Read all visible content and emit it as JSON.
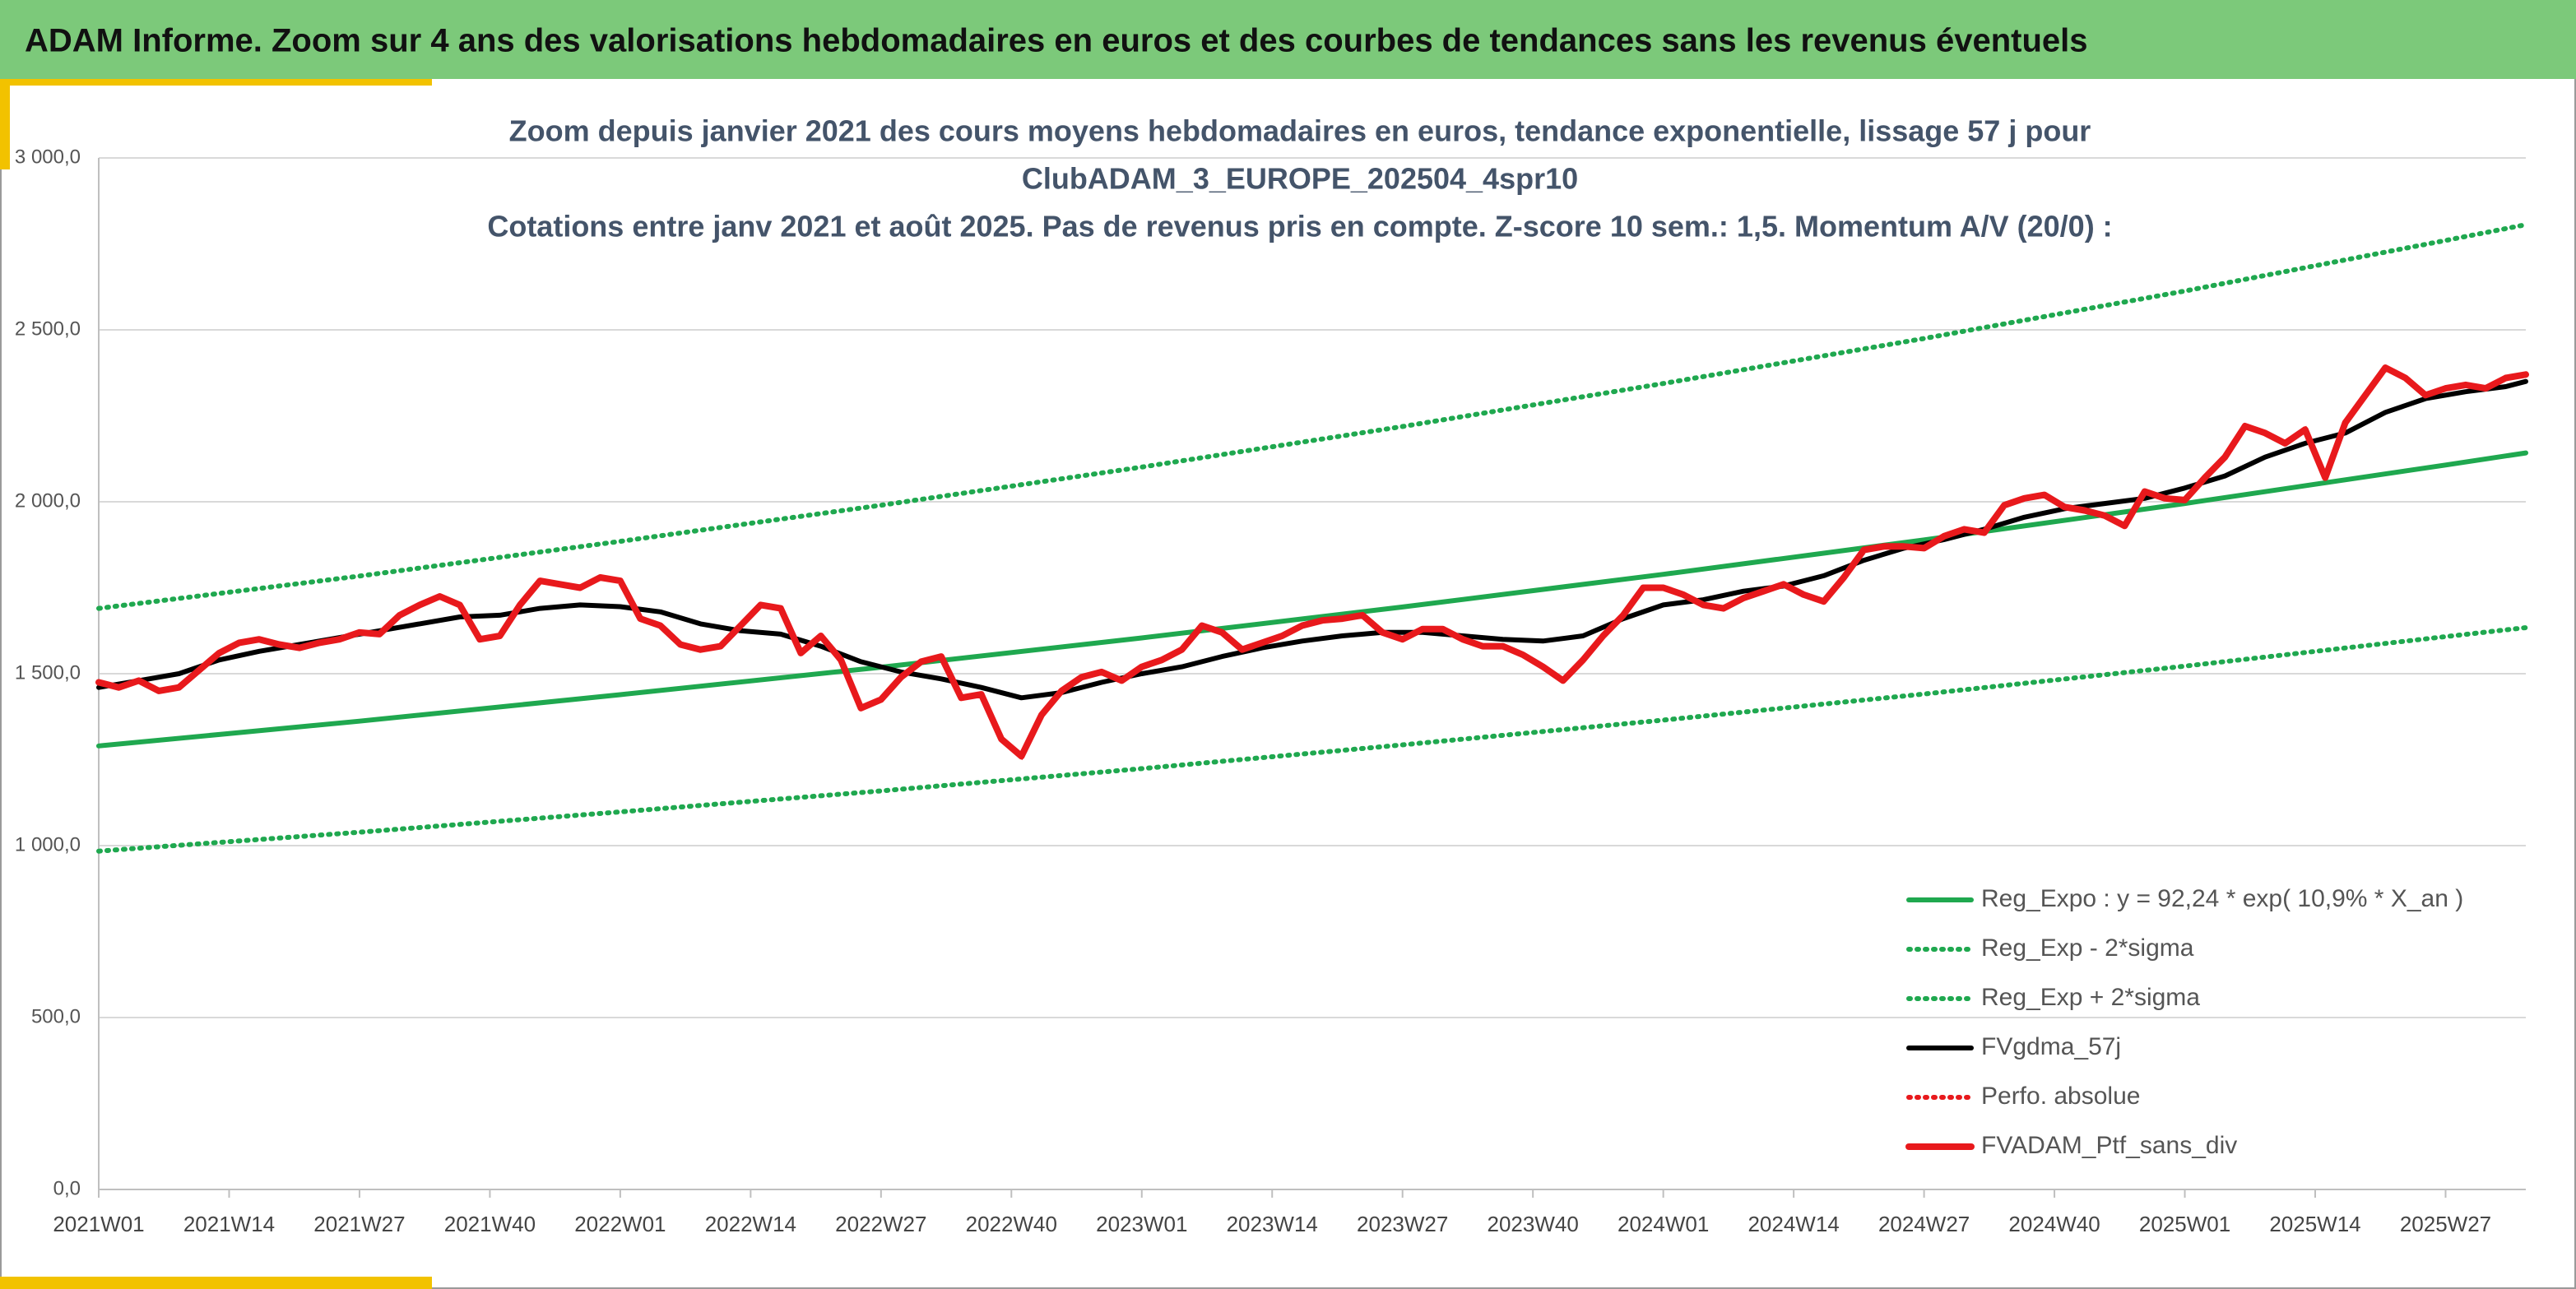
{
  "header": {
    "title": "ADAM Informe. Zoom sur 4 ans des valorisations hebdomadaires en euros et des courbes de tendances sans les revenus éventuels"
  },
  "chart_data": {
    "type": "line",
    "title": [
      "Zoom depuis janvier 2021 des cours moyens hebdomadaires en euros, tendance exponentielle, lissage 57 j pour",
      "ClubADAM_3_EUROPE_202504_4spr10",
      "Cotations entre janv 2021 et août 2025. Pas de revenus pris en compte. Z-score 10 sem.: 1,5. Momentum A/V (20/0) :"
    ],
    "xlim": [
      "2021W01",
      "2025W35"
    ],
    "xticks": [
      "2021W01",
      "2021W14",
      "2021W27",
      "2021W40",
      "2022W01",
      "2022W14",
      "2022W27",
      "2022W40",
      "2023W01",
      "2023W14",
      "2023W27",
      "2023W40",
      "2024W01",
      "2024W14",
      "2024W27",
      "2024W40",
      "2025W01",
      "2025W14",
      "2025W27"
    ],
    "ylim": [
      0,
      3000
    ],
    "yticks": [
      {
        "value": 0,
        "label": "0,0"
      },
      {
        "value": 500,
        "label": "500,0"
      },
      {
        "value": 1000,
        "label": "1 000,0"
      },
      {
        "value": 1500,
        "label": "1 500,0"
      },
      {
        "value": 2000,
        "label": "2 000,0"
      },
      {
        "value": 2500,
        "label": "2 500,0"
      },
      {
        "value": 3000,
        "label": "3 000,0"
      }
    ],
    "grid": true,
    "legend": "bottom-right",
    "series": [
      {
        "name": "Reg_Expo : y = 92,24 * exp( 10,9% *  X_an )",
        "color": "#1fa84f",
        "style": "solid",
        "x": [
          "2021W01",
          "2021W27",
          "2022W01",
          "2022W27",
          "2023W01",
          "2023W27",
          "2024W01",
          "2024W27",
          "2025W01",
          "2025W27",
          "2025W35"
        ],
        "values": [
          1290,
          1362,
          1439,
          1519,
          1604,
          1694,
          1789,
          1889,
          1995,
          2107,
          2142
        ]
      },
      {
        "name": "Reg_Exp - 2*sigma",
        "color": "#1fa84f",
        "style": "dotted",
        "x": [
          "2021W01",
          "2021W27",
          "2022W01",
          "2022W27",
          "2023W01",
          "2023W27",
          "2024W01",
          "2024W27",
          "2025W01",
          "2025W27",
          "2025W35"
        ],
        "values": [
          984,
          1039,
          1098,
          1159,
          1224,
          1293,
          1365,
          1441,
          1522,
          1608,
          1634
        ]
      },
      {
        "name": "Reg_Exp + 2*sigma",
        "color": "#1fa84f",
        "style": "dotted",
        "x": [
          "2021W01",
          "2021W27",
          "2022W01",
          "2022W27",
          "2023W01",
          "2023W27",
          "2024W01",
          "2024W27",
          "2025W01",
          "2025W27",
          "2025W35"
        ],
        "values": [
          1690,
          1784,
          1885,
          1990,
          2101,
          2219,
          2344,
          2475,
          2613,
          2760,
          2806
        ]
      },
      {
        "name": "FVgdma_57j",
        "color": "#000000",
        "style": "solid",
        "x": [
          "2021W01",
          "2021W05",
          "2021W09",
          "2021W13",
          "2021W17",
          "2021W21",
          "2021W25",
          "2021W29",
          "2021W33",
          "2021W37",
          "2021W41",
          "2021W45",
          "2021W49",
          "2022W01",
          "2022W05",
          "2022W09",
          "2022W13",
          "2022W17",
          "2022W21",
          "2022W25",
          "2022W29",
          "2022W33",
          "2022W37",
          "2022W41",
          "2022W45",
          "2022W49",
          "2023W01",
          "2023W05",
          "2023W09",
          "2023W13",
          "2023W17",
          "2023W21",
          "2023W25",
          "2023W29",
          "2023W33",
          "2023W37",
          "2023W41",
          "2023W45",
          "2023W49",
          "2024W01",
          "2024W05",
          "2024W09",
          "2024W13",
          "2024W17",
          "2024W21",
          "2024W25",
          "2024W29",
          "2024W33",
          "2024W37",
          "2024W41",
          "2024W45",
          "2024W49",
          "2025W01",
          "2025W05",
          "2025W09",
          "2025W13",
          "2025W17",
          "2025W21",
          "2025W25",
          "2025W29",
          "2025W33",
          "2025W35"
        ],
        "values": [
          1460,
          1480,
          1500,
          1540,
          1565,
          1585,
          1605,
          1625,
          1645,
          1665,
          1670,
          1690,
          1700,
          1695,
          1680,
          1645,
          1625,
          1615,
          1580,
          1535,
          1505,
          1485,
          1460,
          1430,
          1445,
          1475,
          1500,
          1520,
          1550,
          1575,
          1595,
          1610,
          1620,
          1620,
          1610,
          1600,
          1595,
          1610,
          1660,
          1700,
          1715,
          1740,
          1755,
          1785,
          1830,
          1865,
          1890,
          1920,
          1955,
          1980,
          1995,
          2010,
          2040,
          2075,
          2130,
          2170,
          2200,
          2260,
          2300,
          2320,
          2335,
          2350
        ]
      },
      {
        "name": "Perfo. absolue",
        "color": "#e8191c",
        "style": "dotted",
        "x": [
          "2021W01",
          "2021W03",
          "2021W05",
          "2021W07",
          "2021W09",
          "2021W11",
          "2021W13",
          "2021W15",
          "2021W17",
          "2021W19",
          "2021W21",
          "2021W23",
          "2021W25",
          "2021W27",
          "2021W29",
          "2021W31",
          "2021W33",
          "2021W35",
          "2021W37",
          "2021W39",
          "2021W41",
          "2021W43",
          "2021W45",
          "2021W47",
          "2021W49",
          "2021W51",
          "2022W01",
          "2022W03",
          "2022W05",
          "2022W07",
          "2022W09",
          "2022W11",
          "2022W13",
          "2022W15",
          "2022W17",
          "2022W19",
          "2022W21",
          "2022W23",
          "2022W25",
          "2022W27",
          "2022W29",
          "2022W31",
          "2022W33",
          "2022W35",
          "2022W37",
          "2022W39",
          "2022W41",
          "2022W43",
          "2022W45",
          "2022W47",
          "2022W49",
          "2022W51",
          "2023W01",
          "2023W03",
          "2023W05",
          "2023W07",
          "2023W09",
          "2023W11",
          "2023W13",
          "2023W15",
          "2023W17",
          "2023W19",
          "2023W21",
          "2023W23",
          "2023W25",
          "2023W27",
          "2023W29",
          "2023W31",
          "2023W33",
          "2023W35",
          "2023W37",
          "2023W39",
          "2023W41",
          "2023W43",
          "2023W45",
          "2023W47",
          "2023W49",
          "2023W51",
          "2024W01",
          "2024W03",
          "2024W05",
          "2024W07",
          "2024W09",
          "2024W11",
          "2024W13",
          "2024W15",
          "2024W17",
          "2024W19",
          "2024W21",
          "2024W23",
          "2024W25",
          "2024W27",
          "2024W29",
          "2024W31",
          "2024W33",
          "2024W35",
          "2024W37",
          "2024W39",
          "2024W41",
          "2024W43",
          "2024W45",
          "2024W47",
          "2024W49",
          "2024W51",
          "2025W01",
          "2025W03",
          "2025W05",
          "2025W07",
          "2025W09",
          "2025W11",
          "2025W13",
          "2025W15",
          "2025W17",
          "2025W19",
          "2025W21",
          "2025W23",
          "2025W25",
          "2025W27",
          "2025W29",
          "2025W31",
          "2025W33",
          "2025W35"
        ],
        "values": [
          1475,
          1460,
          1480,
          1450,
          1460,
          1510,
          1560,
          1590,
          1600,
          1585,
          1575,
          1590,
          1600,
          1620,
          1615,
          1670,
          1700,
          1725,
          1700,
          1600,
          1610,
          1700,
          1770,
          1760,
          1750,
          1780,
          1770,
          1660,
          1640,
          1585,
          1570,
          1580,
          1640,
          1700,
          1690,
          1560,
          1610,
          1540,
          1400,
          1425,
          1490,
          1535,
          1550,
          1430,
          1440,
          1310,
          1260,
          1380,
          1450,
          1490,
          1505,
          1480,
          1520,
          1540,
          1570,
          1640,
          1620,
          1570,
          1590,
          1610,
          1640,
          1655,
          1660,
          1670,
          1620,
          1600,
          1630,
          1630,
          1600,
          1580,
          1580,
          1555,
          1520,
          1480,
          1540,
          1610,
          1670,
          1750,
          1750,
          1730,
          1700,
          1690,
          1720,
          1740,
          1760,
          1730,
          1710,
          1780,
          1860,
          1870,
          1870,
          1865,
          1900,
          1920,
          1910,
          1990,
          2010,
          2020,
          1985,
          1975,
          1960,
          1930,
          2030,
          2010,
          2005,
          2070,
          2130,
          2220,
          2200,
          2170,
          2210,
          2070,
          2230,
          2310,
          2390,
          2360,
          2310,
          2330,
          2340,
          2330,
          2360,
          2370
        ]
      },
      {
        "name": "FVADAM_Ptf_sans_div",
        "color": "#e8191c",
        "style": "solid",
        "x": [
          "2021W01",
          "2021W03",
          "2021W05",
          "2021W07",
          "2021W09",
          "2021W11",
          "2021W13",
          "2021W15",
          "2021W17",
          "2021W19",
          "2021W21",
          "2021W23",
          "2021W25",
          "2021W27",
          "2021W29",
          "2021W31",
          "2021W33",
          "2021W35",
          "2021W37",
          "2021W39",
          "2021W41",
          "2021W43",
          "2021W45",
          "2021W47",
          "2021W49",
          "2021W51",
          "2022W01",
          "2022W03",
          "2022W05",
          "2022W07",
          "2022W09",
          "2022W11",
          "2022W13",
          "2022W15",
          "2022W17",
          "2022W19",
          "2022W21",
          "2022W23",
          "2022W25",
          "2022W27",
          "2022W29",
          "2022W31",
          "2022W33",
          "2022W35",
          "2022W37",
          "2022W39",
          "2022W41",
          "2022W43",
          "2022W45",
          "2022W47",
          "2022W49",
          "2022W51",
          "2023W01",
          "2023W03",
          "2023W05",
          "2023W07",
          "2023W09",
          "2023W11",
          "2023W13",
          "2023W15",
          "2023W17",
          "2023W19",
          "2023W21",
          "2023W23",
          "2023W25",
          "2023W27",
          "2023W29",
          "2023W31",
          "2023W33",
          "2023W35",
          "2023W37",
          "2023W39",
          "2023W41",
          "2023W43",
          "2023W45",
          "2023W47",
          "2023W49",
          "2023W51",
          "2024W01",
          "2024W03",
          "2024W05",
          "2024W07",
          "2024W09",
          "2024W11",
          "2024W13",
          "2024W15",
          "2024W17",
          "2024W19",
          "2024W21",
          "2024W23",
          "2024W25",
          "2024W27",
          "2024W29",
          "2024W31",
          "2024W33",
          "2024W35",
          "2024W37",
          "2024W39",
          "2024W41",
          "2024W43",
          "2024W45",
          "2024W47",
          "2024W49",
          "2024W51",
          "2025W01",
          "2025W03",
          "2025W05",
          "2025W07",
          "2025W09",
          "2025W11",
          "2025W13",
          "2025W15",
          "2025W17",
          "2025W19",
          "2025W21",
          "2025W23",
          "2025W25",
          "2025W27",
          "2025W29",
          "2025W31",
          "2025W33",
          "2025W35"
        ],
        "values": [
          1475,
          1460,
          1480,
          1450,
          1460,
          1510,
          1560,
          1590,
          1600,
          1585,
          1575,
          1590,
          1600,
          1620,
          1615,
          1670,
          1700,
          1725,
          1700,
          1600,
          1610,
          1700,
          1770,
          1760,
          1750,
          1780,
          1770,
          1660,
          1640,
          1585,
          1570,
          1580,
          1640,
          1700,
          1690,
          1560,
          1610,
          1540,
          1400,
          1425,
          1490,
          1535,
          1550,
          1430,
          1440,
          1310,
          1260,
          1380,
          1450,
          1490,
          1505,
          1480,
          1520,
          1540,
          1570,
          1640,
          1620,
          1570,
          1590,
          1610,
          1640,
          1655,
          1660,
          1670,
          1620,
          1600,
          1630,
          1630,
          1600,
          1580,
          1580,
          1555,
          1520,
          1480,
          1540,
          1610,
          1670,
          1750,
          1750,
          1730,
          1700,
          1690,
          1720,
          1740,
          1760,
          1730,
          1710,
          1780,
          1860,
          1870,
          1870,
          1865,
          1900,
          1920,
          1910,
          1990,
          2010,
          2020,
          1985,
          1975,
          1960,
          1930,
          2030,
          2010,
          2005,
          2070,
          2130,
          2220,
          2200,
          2170,
          2210,
          2070,
          2230,
          2310,
          2390,
          2360,
          2310,
          2330,
          2340,
          2330,
          2360,
          2370
        ]
      }
    ]
  }
}
